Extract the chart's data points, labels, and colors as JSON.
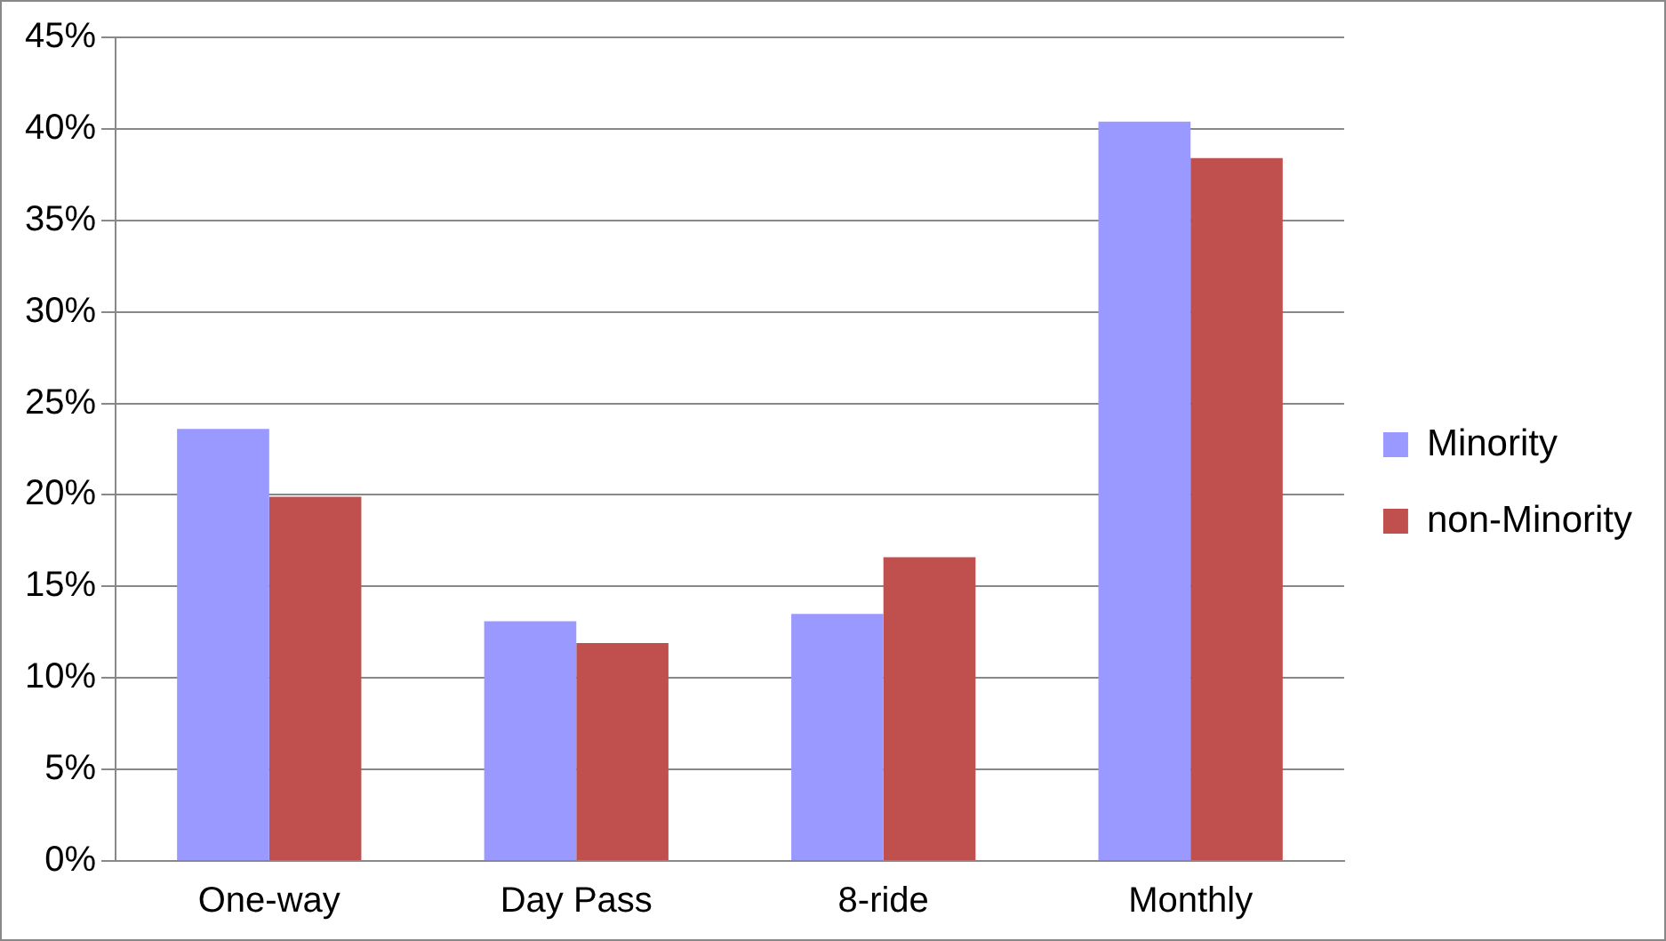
{
  "chart_data": {
    "type": "bar",
    "categories": [
      "One-way",
      "Day Pass",
      "8-ride",
      "Monthly"
    ],
    "series": [
      {
        "name": "Minority",
        "color": "#9999ff",
        "values": [
          23.6,
          13.1,
          13.5,
          40.4
        ]
      },
      {
        "name": "non-Minority",
        "color": "#c0504d",
        "values": [
          19.9,
          11.9,
          16.6,
          38.4
        ]
      }
    ],
    "ylim": [
      0,
      45
    ],
    "yticks": [
      {
        "value": 0,
        "label": "0%"
      },
      {
        "value": 5,
        "label": "5%"
      },
      {
        "value": 10,
        "label": "10%"
      },
      {
        "value": 15,
        "label": "15%"
      },
      {
        "value": 20,
        "label": "20%"
      },
      {
        "value": 25,
        "label": "25%"
      },
      {
        "value": 30,
        "label": "30%"
      },
      {
        "value": 35,
        "label": "35%"
      },
      {
        "value": 40,
        "label": "40%"
      },
      {
        "value": 45,
        "label": "45%"
      }
    ],
    "grid": "y",
    "legend": "right"
  }
}
